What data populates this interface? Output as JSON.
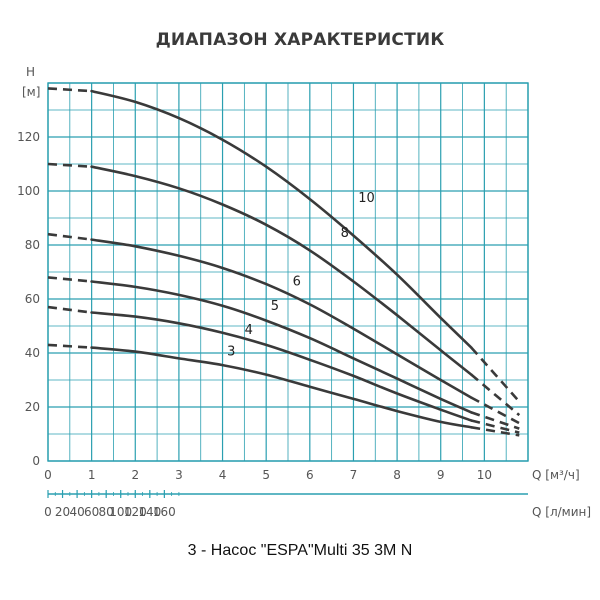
{
  "chart_data": {
    "type": "line",
    "title": "ДИАПАЗОН ХАРАКТЕРИСТИК",
    "ylabel_top": "H",
    "ylabel_unit": "[м]",
    "xlabel": "Q [м³/ч]",
    "x2label": "Q [л/мин]",
    "xlim": [
      0,
      11
    ],
    "ylim": [
      0,
      140
    ],
    "x_ticks": [
      0,
      1,
      2,
      3,
      4,
      5,
      6,
      7,
      8,
      9,
      10
    ],
    "y_ticks": [
      0,
      20,
      40,
      60,
      80,
      100,
      120
    ],
    "x2_ticks": [
      0,
      20,
      40,
      60,
      80,
      100,
      120,
      140,
      160
    ],
    "grid": true,
    "series": [
      {
        "name": "3",
        "solid": [
          [
            1.0,
            42
          ],
          [
            2,
            40.5
          ],
          [
            3,
            38
          ],
          [
            4,
            35.5
          ],
          [
            5,
            32
          ],
          [
            6,
            27.5
          ],
          [
            7,
            23
          ],
          [
            8,
            18.5
          ],
          [
            9,
            14.5
          ],
          [
            9.7,
            12.5
          ]
        ],
        "dash_start": [
          [
            0,
            43
          ],
          [
            1.0,
            42
          ]
        ],
        "dash_end": [
          [
            9.7,
            12.5
          ],
          [
            10.8,
            9.5
          ]
        ],
        "label_at": [
          4.2,
          39
        ]
      },
      {
        "name": "4",
        "solid": [
          [
            1.0,
            55
          ],
          [
            2,
            53.5
          ],
          [
            3,
            51
          ],
          [
            4,
            47.5
          ],
          [
            5,
            43
          ],
          [
            6,
            37.5
          ],
          [
            7,
            31.5
          ],
          [
            8,
            25
          ],
          [
            9,
            19
          ],
          [
            9.7,
            15
          ]
        ],
        "dash_start": [
          [
            0,
            57
          ],
          [
            1.0,
            55
          ]
        ],
        "dash_end": [
          [
            9.7,
            15
          ],
          [
            10.8,
            10.5
          ]
        ],
        "label_at": [
          4.6,
          47
        ]
      },
      {
        "name": "5",
        "solid": [
          [
            1.0,
            66.5
          ],
          [
            2,
            64.5
          ],
          [
            3,
            61.5
          ],
          [
            4,
            57.5
          ],
          [
            5,
            52
          ],
          [
            6,
            45.5
          ],
          [
            7,
            38
          ],
          [
            8,
            30.5
          ],
          [
            9,
            23
          ],
          [
            9.7,
            18
          ]
        ],
        "dash_start": [
          [
            0,
            68
          ],
          [
            1.0,
            66.5
          ]
        ],
        "dash_end": [
          [
            9.7,
            18
          ],
          [
            10.8,
            12
          ]
        ],
        "label_at": [
          5.2,
          56
        ]
      },
      {
        "name": "6",
        "solid": [
          [
            1.0,
            82
          ],
          [
            2,
            79.5
          ],
          [
            3,
            76
          ],
          [
            4,
            71.5
          ],
          [
            5,
            65.5
          ],
          [
            6,
            58
          ],
          [
            7,
            49
          ],
          [
            8,
            39.5
          ],
          [
            9,
            30
          ],
          [
            9.7,
            23.5
          ]
        ],
        "dash_start": [
          [
            0,
            84
          ],
          [
            1.0,
            82
          ]
        ],
        "dash_end": [
          [
            9.7,
            23.5
          ],
          [
            10.8,
            14
          ]
        ],
        "label_at": [
          5.7,
          65
        ]
      },
      {
        "name": "8",
        "solid": [
          [
            1.0,
            109
          ],
          [
            2,
            105.5
          ],
          [
            3,
            101
          ],
          [
            4,
            95
          ],
          [
            5,
            87.5
          ],
          [
            6,
            78
          ],
          [
            7,
            66.5
          ],
          [
            8,
            54
          ],
          [
            9,
            41
          ],
          [
            9.7,
            32
          ]
        ],
        "dash_start": [
          [
            0,
            110
          ],
          [
            1.0,
            109
          ]
        ],
        "dash_end": [
          [
            9.7,
            32
          ],
          [
            10.8,
            17
          ]
        ],
        "label_at": [
          6.8,
          83
        ]
      },
      {
        "name": "10",
        "solid": [
          [
            1.0,
            137
          ],
          [
            2,
            133
          ],
          [
            3,
            127
          ],
          [
            4,
            119
          ],
          [
            5,
            109
          ],
          [
            6,
            97
          ],
          [
            7,
            83.5
          ],
          [
            8,
            69
          ],
          [
            9,
            53
          ],
          [
            9.7,
            42
          ]
        ],
        "dash_start": [
          [
            0,
            138
          ],
          [
            1.0,
            137
          ]
        ],
        "dash_end": [
          [
            9.7,
            42
          ],
          [
            10.8,
            22
          ]
        ],
        "label_at": [
          7.3,
          96
        ]
      }
    ]
  },
  "caption": "3 - Насос \"ESPA\"Multi 35 3M N",
  "colors": {
    "grid": "#2a9fb0",
    "curve": "#3a3a3a",
    "text": "#555555"
  }
}
